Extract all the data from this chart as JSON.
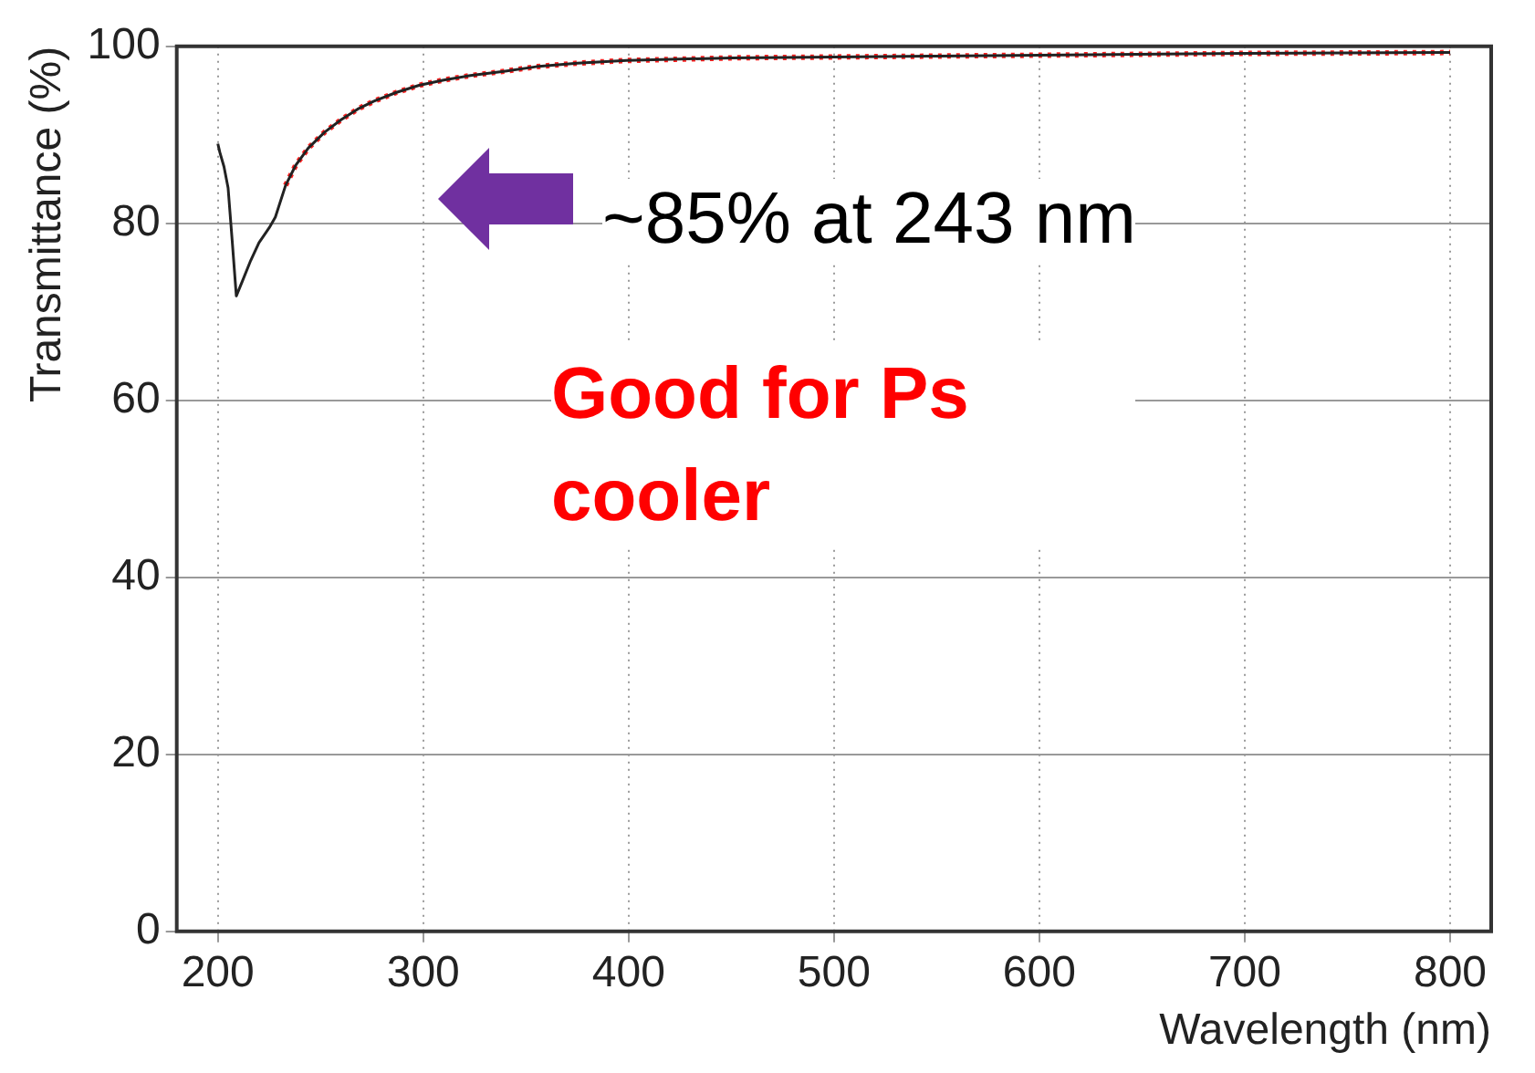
{
  "chart_data": {
    "type": "line",
    "xlabel": "Wavelength (nm)",
    "ylabel": "Transmittance (%)",
    "xlim": [
      180,
      820
    ],
    "xticks": [
      200,
      300,
      400,
      500,
      600,
      700,
      800
    ],
    "ylim": [
      0,
      100
    ],
    "yticks": [
      0,
      20,
      40,
      60,
      80,
      100
    ],
    "grid": true,
    "line_style": "solid",
    "marker": "none",
    "series": [
      {
        "color": "#222222",
        "x": [
          200,
          201,
          203,
          205,
          207,
          209,
          212,
          216,
          220,
          225,
          228,
          233,
          238,
          244,
          252,
          260,
          268,
          276,
          287,
          298,
          310,
          323,
          340,
          355,
          375,
          399,
          450,
          500,
          550,
          600,
          700,
          800
        ],
        "values": [
          89,
          88,
          86.4,
          84,
          78,
          71.8,
          73.5,
          75.8,
          77.8,
          79.5,
          80.7,
          84.3,
          86.6,
          88.5,
          90.3,
          91.7,
          92.9,
          93.8,
          94.8,
          95.6,
          96.2,
          96.7,
          97.2,
          97.7,
          98.1,
          98.4,
          98.7,
          98.8,
          98.9,
          99,
          99.2,
          99.3
        ]
      },
      {
        "color": "#ff2020",
        "line_style": "dotted",
        "x": [
          233,
          238,
          244,
          252,
          260,
          268,
          276,
          287,
          298,
          310,
          323,
          340,
          355,
          375,
          399,
          450,
          500,
          550,
          600,
          700,
          800
        ],
        "values": [
          84.3,
          86.6,
          88.5,
          90.3,
          91.7,
          92.9,
          93.8,
          94.8,
          95.6,
          96.2,
          96.7,
          97.2,
          97.7,
          98.1,
          98.4,
          98.7,
          98.8,
          98.9,
          99,
          99.2,
          99.3
        ]
      }
    ],
    "annotations": [
      "~85% at 243 nm",
      "Good for Ps cooler"
    ]
  }
}
